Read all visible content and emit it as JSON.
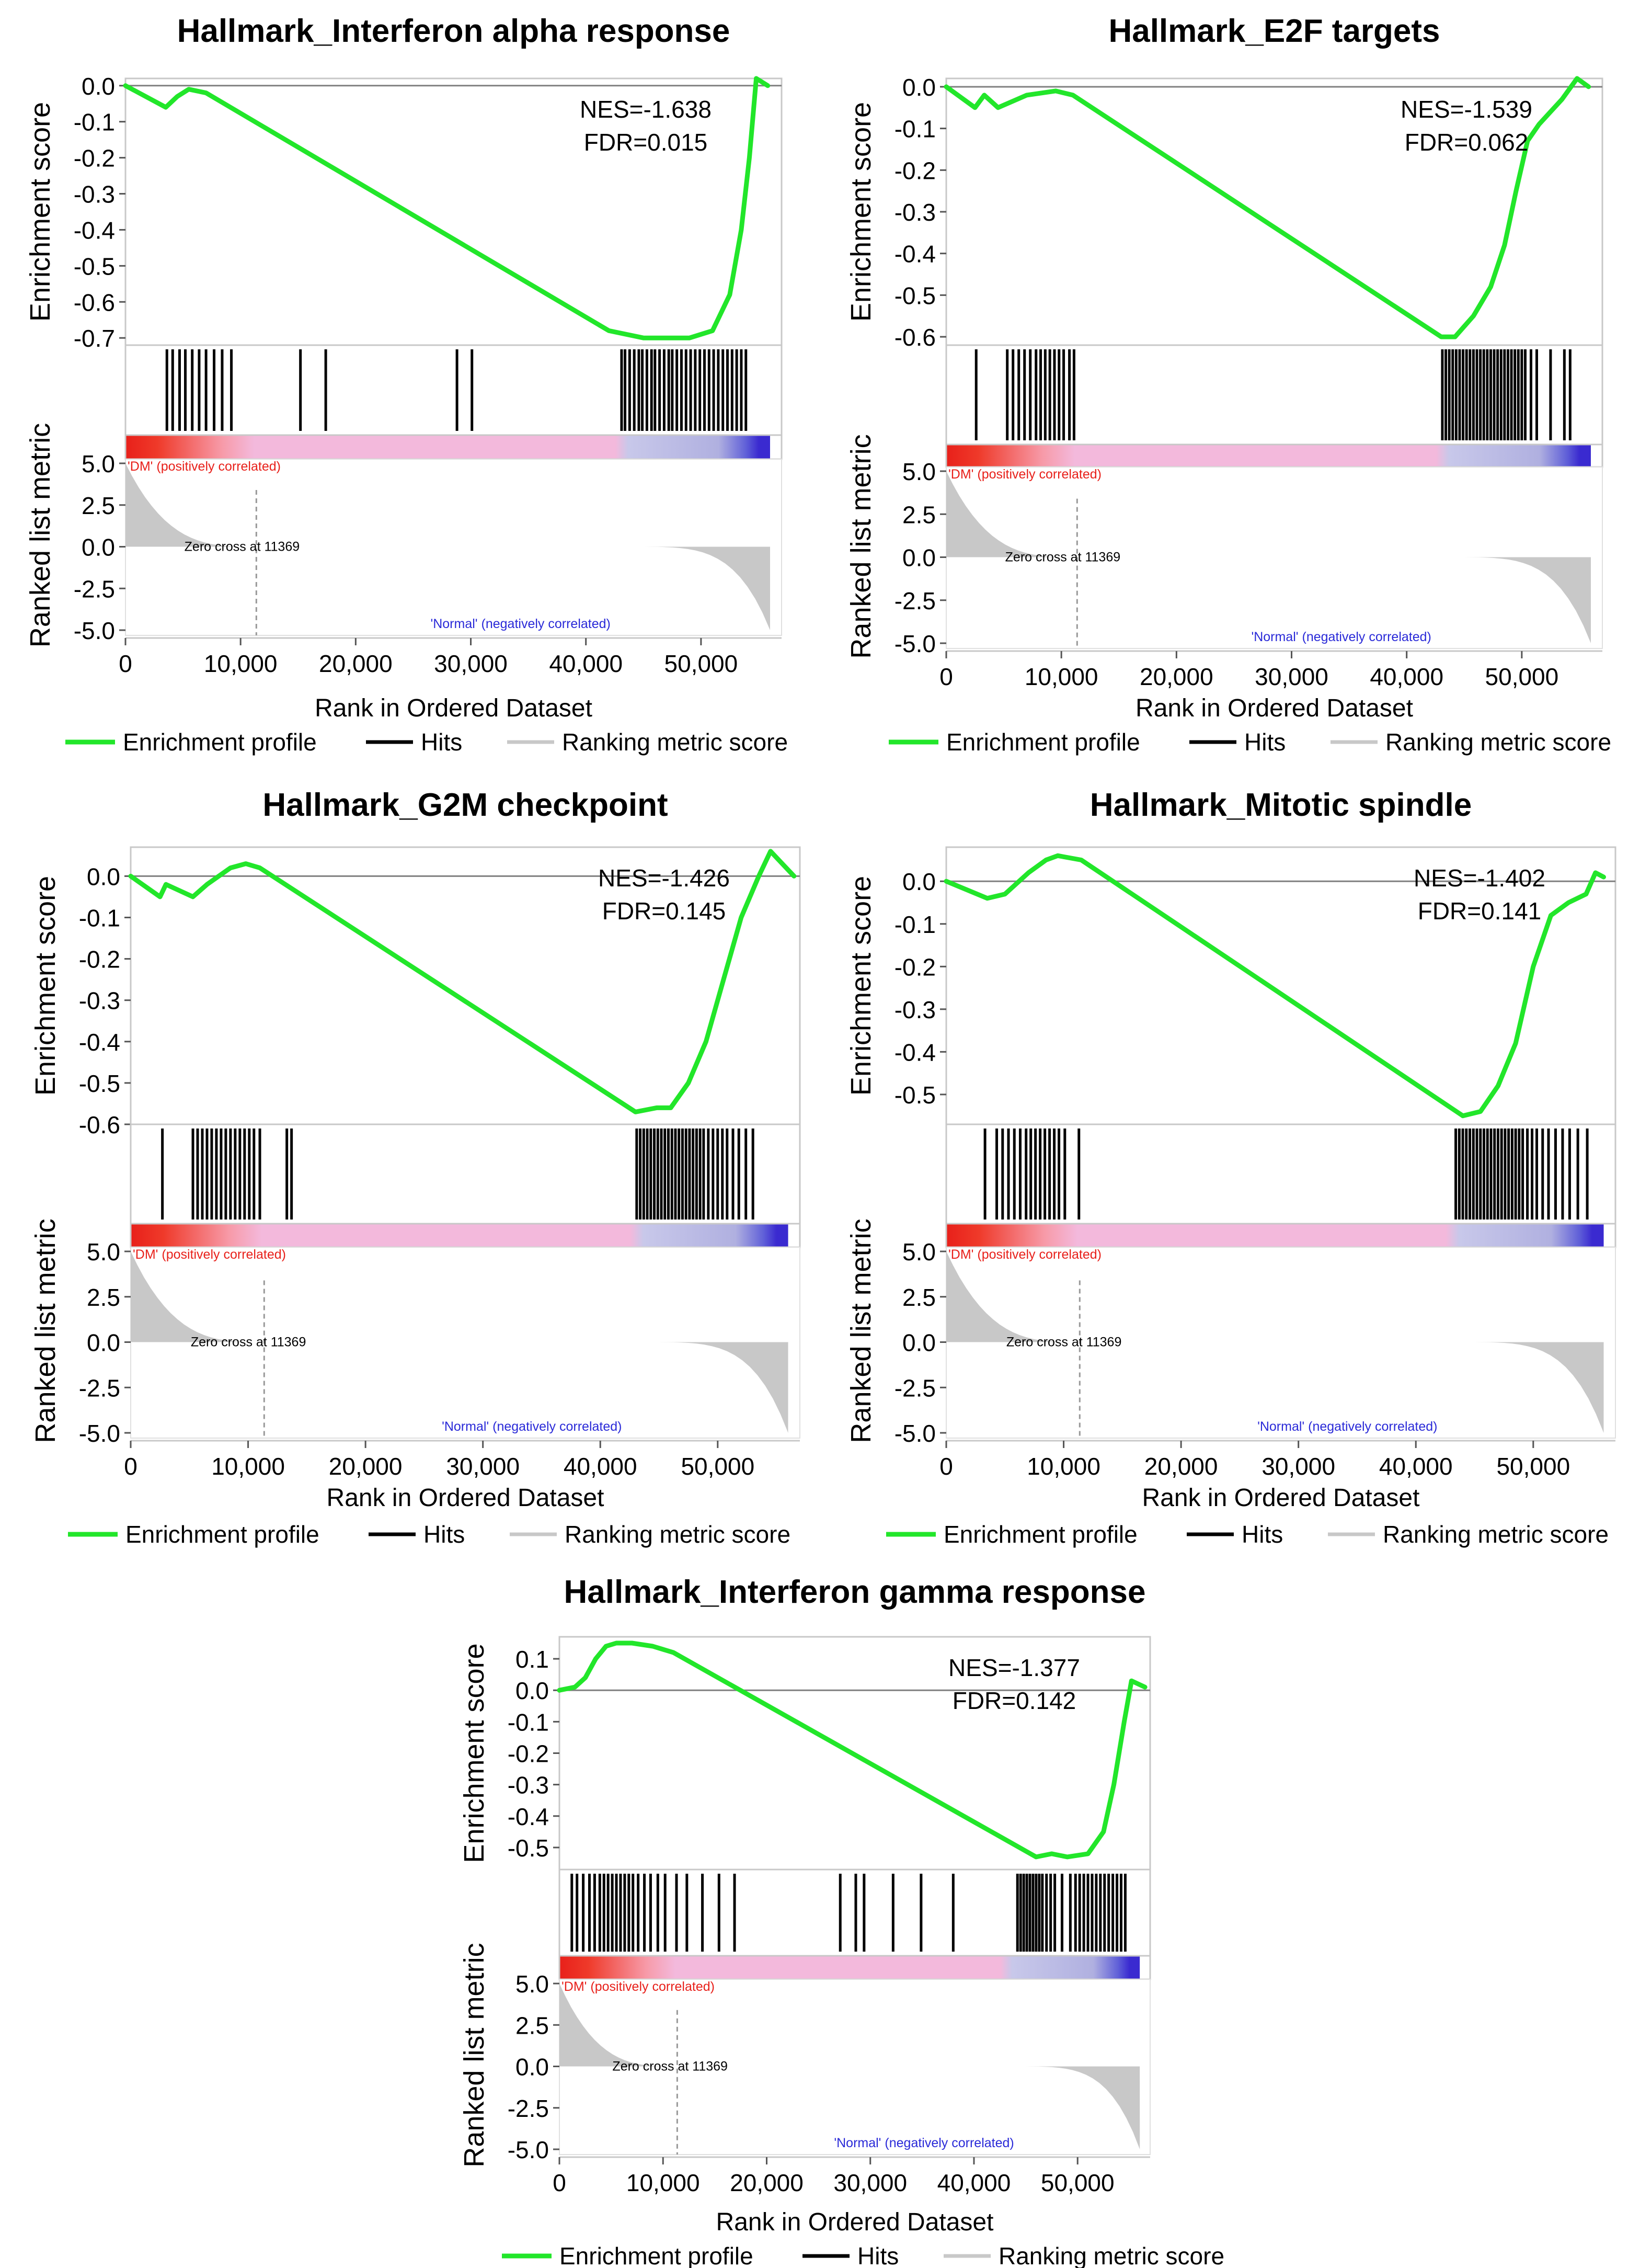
{
  "colors": {
    "profile": "#22e62a",
    "hits": "#000000",
    "metric": "#c8c8c8",
    "pos_label": "#e8201a",
    "neg_label": "#2a2ad8",
    "pink": "#f3b9dc"
  },
  "legend": {
    "profile": "Enrichment profile",
    "hits": "Hits",
    "metric": "Ranking metric score"
  },
  "chart_data": [
    {
      "type": "line",
      "title": "Hallmark_Interferon alpha response",
      "nes": "NES=-1.638",
      "fdr": "FDR=0.015",
      "ylabel_es": "Enrichment score",
      "ylabel_metric": "Ranked list metric",
      "xlabel": "Rank in Ordered Dataset",
      "xlim": [
        0,
        57000
      ],
      "x_ticks": [
        "0",
        "10,000",
        "20,000",
        "30,000",
        "40,000",
        "50,000"
      ],
      "es_ylim": [
        -0.72,
        0.02
      ],
      "es_ticks": [
        "0.0",
        "-0.1",
        "-0.2",
        "-0.3",
        "-0.4",
        "-0.5",
        "-0.6",
        "-0.7"
      ],
      "es_tick_values": [
        0.0,
        -0.1,
        -0.2,
        -0.3,
        -0.4,
        -0.5,
        -0.6,
        -0.7
      ],
      "es_x": [
        0,
        3500,
        4500,
        5500,
        7000,
        42000,
        45000,
        49000,
        51000,
        52500,
        53500,
        54200,
        54800,
        55800
      ],
      "es_y": [
        0.0,
        -0.06,
        -0.03,
        -0.01,
        -0.02,
        -0.68,
        -0.7,
        -0.7,
        -0.68,
        -0.58,
        -0.4,
        -0.2,
        0.02,
        0.0
      ],
      "hits": [
        3600,
        4100,
        4700,
        5200,
        5800,
        6400,
        7000,
        7700,
        8400,
        9200,
        15200,
        17400,
        28800,
        30100,
        43100,
        43400,
        43800,
        44200,
        44600,
        44900,
        45300,
        45700,
        46000,
        46400,
        46800,
        47200,
        47500,
        47900,
        48300,
        48700,
        49100,
        49500,
        49900,
        50300,
        50700,
        51100,
        51500,
        51900,
        52300,
        52700,
        53100,
        53500,
        53900
      ],
      "metric_ticks": [
        "5.0",
        "2.5",
        "0.0",
        "-2.5",
        "-5.0"
      ],
      "zero_cross": "Zero cross at 11369",
      "zero_cross_value": 11369,
      "pos_label": "'DM' (positively correlated)",
      "neg_label": "'Normal' (negatively correlated)",
      "legend_profile": "Enrichment profile",
      "legend_hits": "Hits",
      "legend_metric": "Ranking metric score"
    },
    {
      "type": "line",
      "title": "Hallmark_E2F targets",
      "nes": "NES=-1.539",
      "fdr": "FDR=0.062",
      "ylabel_es": "Enrichment score",
      "ylabel_metric": "Ranked list metric",
      "xlabel": "Rank in Ordered Dataset",
      "xlim": [
        0,
        57000
      ],
      "x_ticks": [
        "0",
        "10,000",
        "20,000",
        "30,000",
        "40,000",
        "50,000"
      ],
      "es_ylim": [
        -0.62,
        0.02
      ],
      "es_ticks": [
        "0.0",
        "-0.1",
        "-0.2",
        "-0.3",
        "-0.4",
        "-0.5",
        "-0.6"
      ],
      "es_tick_values": [
        0.0,
        -0.1,
        -0.2,
        -0.3,
        -0.4,
        -0.5,
        -0.6
      ],
      "es_x": [
        0,
        2500,
        3300,
        4500,
        7000,
        9500,
        11000,
        43000,
        44200,
        45800,
        47300,
        48500,
        49500,
        50500,
        51500,
        52500,
        53500,
        54800,
        55800
      ],
      "es_y": [
        0.0,
        -0.05,
        -0.02,
        -0.05,
        -0.02,
        -0.01,
        -0.02,
        -0.6,
        -0.6,
        -0.55,
        -0.48,
        -0.38,
        -0.25,
        -0.13,
        -0.09,
        -0.06,
        -0.03,
        0.02,
        0.0
      ],
      "hits": [
        2600,
        5300,
        5800,
        6300,
        6800,
        7300,
        7800,
        8200,
        8600,
        9000,
        9400,
        9800,
        10200,
        10700,
        11100,
        43100,
        43400,
        43700,
        44000,
        44300,
        44600,
        44900,
        45200,
        45500,
        45800,
        46100,
        46400,
        46700,
        47000,
        47300,
        47600,
        47900,
        48200,
        48500,
        48800,
        49100,
        49400,
        49700,
        50000,
        50300,
        50800,
        51300,
        52500,
        53700,
        54200
      ],
      "metric_ticks": [
        "5.0",
        "2.5",
        "0.0",
        "-2.5",
        "-5.0"
      ],
      "zero_cross": "Zero cross at 11369",
      "zero_cross_value": 11369,
      "pos_label": "'DM' (positively correlated)",
      "neg_label": "'Normal' (negatively correlated)",
      "legend_profile": "Enrichment profile",
      "legend_hits": "Hits",
      "legend_metric": "Ranking metric score"
    },
    {
      "type": "line",
      "title": "Hallmark_G2M checkpoint",
      "nes": "NES=-1.426",
      "fdr": "FDR=0.145",
      "ylabel_es": "Enrichment score",
      "ylabel_metric": "Ranked list metric",
      "xlabel": "Rank in Ordered Dataset",
      "xlim": [
        0,
        57000
      ],
      "x_ticks": [
        "0",
        "10,000",
        "20,000",
        "30,000",
        "40,000",
        "50,000"
      ],
      "es_ylim": [
        -0.6,
        0.07
      ],
      "es_ticks": [
        "0.0",
        "-0.1",
        "-0.2",
        "-0.3",
        "-0.4",
        "-0.5",
        "-0.6"
      ],
      "es_tick_values": [
        0.0,
        -0.1,
        -0.2,
        -0.3,
        -0.4,
        -0.5,
        -0.6
      ],
      "es_x": [
        0,
        2500,
        3000,
        5300,
        6500,
        8500,
        9800,
        11000,
        43000,
        44800,
        46000,
        47500,
        49000,
        50500,
        52000,
        53500,
        54500,
        56500
      ],
      "es_y": [
        0.0,
        -0.05,
        -0.02,
        -0.05,
        -0.02,
        0.02,
        0.03,
        0.02,
        -0.57,
        -0.56,
        -0.56,
        -0.5,
        -0.4,
        -0.25,
        -0.1,
        0.0,
        0.06,
        0.0
      ],
      "hits": [
        2700,
        5300,
        5700,
        6100,
        6500,
        6900,
        7300,
        7700,
        8100,
        8500,
        8900,
        9300,
        9700,
        10100,
        10500,
        11000,
        13300,
        13700,
        43100,
        43400,
        43700,
        44000,
        44300,
        44600,
        44900,
        45200,
        45500,
        45800,
        46100,
        46400,
        46700,
        47000,
        47300,
        47600,
        47900,
        48200,
        48500,
        48800,
        49200,
        49600,
        50000,
        50400,
        50800,
        51300,
        51800,
        52400,
        53000
      ],
      "metric_ticks": [
        "5.0",
        "2.5",
        "0.0",
        "-2.5",
        "-5.0"
      ],
      "zero_cross": "Zero cross at 11369",
      "zero_cross_value": 11369,
      "pos_label": "'DM' (positively correlated)",
      "neg_label": "'Normal' (negatively correlated)",
      "legend_profile": "Enrichment profile",
      "legend_hits": "Hits",
      "legend_metric": "Ranking metric score"
    },
    {
      "type": "line",
      "title": "Hallmark_Mitotic spindle",
      "nes": "NES=-1.402",
      "fdr": "FDR=0.141",
      "ylabel_es": "Enrichment score",
      "ylabel_metric": "Ranked list metric",
      "xlabel": "Rank in Ordered Dataset",
      "xlim": [
        0,
        57000
      ],
      "x_ticks": [
        "0",
        "10,000",
        "20,000",
        "30,000",
        "40,000",
        "50,000"
      ],
      "es_ylim": [
        -0.57,
        0.08
      ],
      "es_ticks": [
        "0.0",
        "-0.1",
        "-0.2",
        "-0.3",
        "-0.4",
        "-0.5"
      ],
      "es_tick_values": [
        0.0,
        -0.1,
        -0.2,
        -0.3,
        -0.4,
        -0.5
      ],
      "es_x": [
        0,
        3500,
        5000,
        7000,
        8500,
        9500,
        11500,
        44000,
        45500,
        47000,
        48500,
        50000,
        51500,
        53000,
        54500,
        55300,
        56000
      ],
      "es_y": [
        0.0,
        -0.04,
        -0.03,
        0.02,
        0.05,
        0.06,
        0.05,
        -0.55,
        -0.54,
        -0.48,
        -0.38,
        -0.2,
        -0.08,
        -0.05,
        -0.03,
        0.02,
        0.01
      ],
      "hits": [
        3300,
        4300,
        4800,
        5300,
        5800,
        6300,
        6800,
        7200,
        7600,
        8000,
        8400,
        8800,
        9200,
        9600,
        10100,
        11300,
        43400,
        43700,
        44000,
        44300,
        44600,
        44900,
        45200,
        45500,
        45800,
        46100,
        46400,
        46700,
        47000,
        47300,
        47600,
        47900,
        48200,
        48500,
        48800,
        49100,
        49500,
        49900,
        50300,
        50800,
        51300,
        51900,
        52500,
        53100,
        53800,
        54600
      ],
      "metric_ticks": [
        "5.0",
        "2.5",
        "0.0",
        "-2.5",
        "-5.0"
      ],
      "zero_cross": "Zero cross at 11369",
      "zero_cross_value": 11369,
      "pos_label": "'DM' (positively correlated)",
      "neg_label": "'Normal' (negatively correlated)",
      "legend_profile": "Enrichment profile",
      "legend_hits": "Hits",
      "legend_metric": "Ranking metric score"
    },
    {
      "type": "line",
      "title": "Hallmark_Interferon gamma response",
      "nes": "NES=-1.377",
      "fdr": "FDR=0.142",
      "ylabel_es": "Enrichment score",
      "ylabel_metric": "Ranked list metric",
      "xlabel": "Rank in Ordered Dataset",
      "xlim": [
        0,
        57000
      ],
      "x_ticks": [
        "0",
        "10,000",
        "20,000",
        "30,000",
        "40,000",
        "50,000"
      ],
      "es_ylim": [
        -0.57,
        0.17
      ],
      "es_ticks": [
        "0.1",
        "0.0",
        "-0.1",
        "-0.2",
        "-0.3",
        "-0.4",
        "-0.5"
      ],
      "es_tick_values": [
        0.1,
        0.0,
        -0.1,
        -0.2,
        -0.3,
        -0.4,
        -0.5
      ],
      "es_x": [
        0,
        1500,
        2500,
        3500,
        4500,
        5500,
        7000,
        9000,
        11000,
        46000,
        47500,
        49000,
        51000,
        52500,
        53500,
        54500,
        55200,
        56500
      ],
      "es_y": [
        0.0,
        0.01,
        0.04,
        0.1,
        0.14,
        0.15,
        0.15,
        0.14,
        0.12,
        -0.53,
        -0.52,
        -0.53,
        -0.52,
        -0.45,
        -0.3,
        -0.1,
        0.03,
        0.01
      ],
      "hits": [
        1200,
        1700,
        2300,
        2900,
        3400,
        3900,
        4300,
        4700,
        5100,
        5500,
        5900,
        6300,
        6700,
        7100,
        7600,
        8200,
        8800,
        9500,
        10200,
        11300,
        12300,
        13800,
        15400,
        16900,
        27100,
        28600,
        29400,
        32200,
        34900,
        38000,
        44200,
        44500,
        44800,
        45100,
        45400,
        45700,
        46000,
        46300,
        46600,
        47000,
        47400,
        47800,
        48500,
        49300,
        49800,
        50200,
        50600,
        51000,
        51400,
        51800,
        52200,
        52600,
        53000,
        53400,
        53800,
        54200,
        54600
      ],
      "metric_ticks": [
        "5.0",
        "2.5",
        "0.0",
        "-2.5",
        "-5.0"
      ],
      "zero_cross": "Zero cross at 11369",
      "zero_cross_value": 11369,
      "pos_label": "'DM' (positively correlated)",
      "neg_label": "'Normal' (negatively correlated)",
      "legend_profile": "Enrichment profile",
      "legend_hits": "Hits",
      "legend_metric": "Ranking metric score"
    }
  ]
}
